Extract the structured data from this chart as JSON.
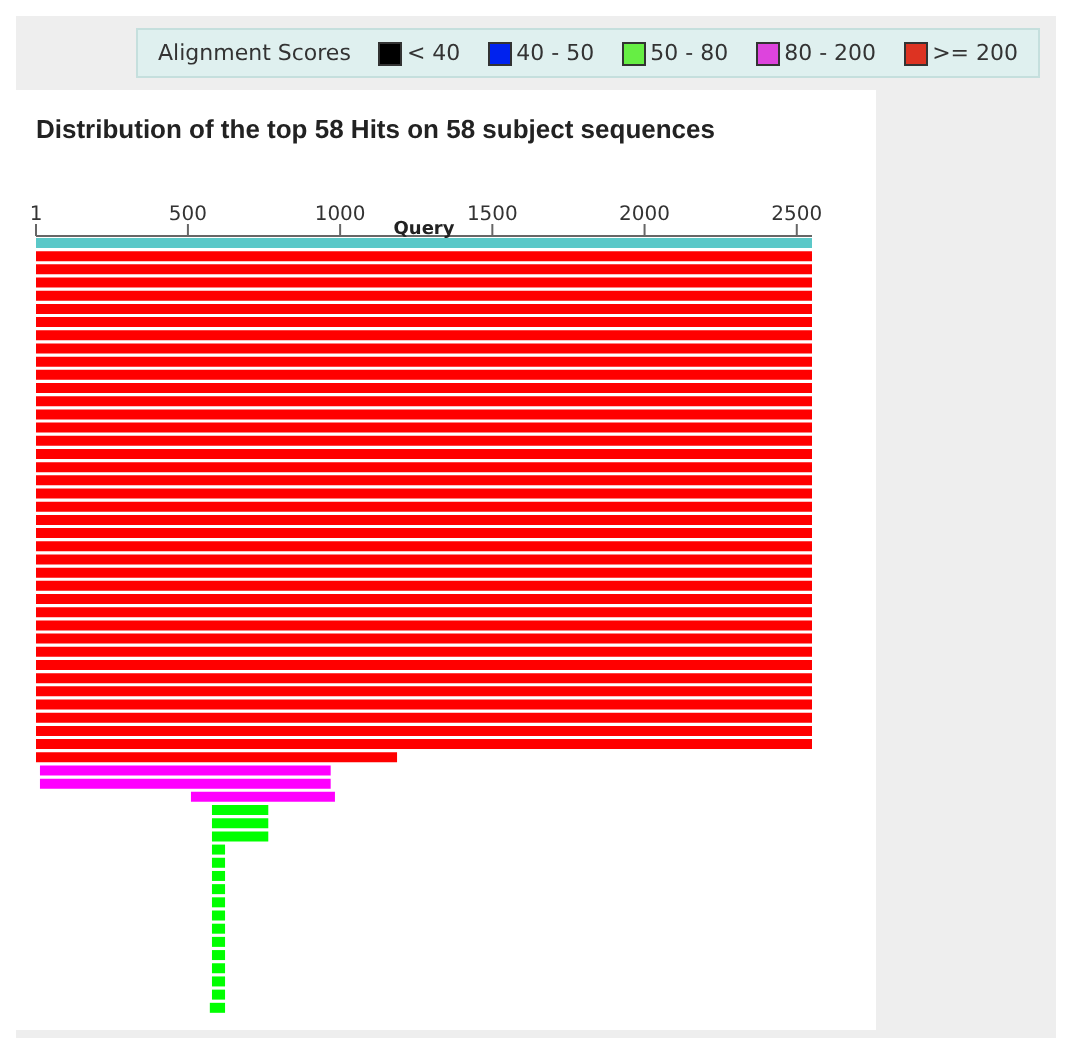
{
  "chart_data": {
    "type": "bar",
    "orientation": "horizontal",
    "title": "Distribution of the top 58 Hits on 58 subject sequences",
    "legend_title": "Alignment Scores",
    "annotations": [
      "Query",
      "< 40",
      "40 - 50",
      "50 - 80",
      "80 - 200",
      ">= 200"
    ],
    "xlim": [
      1,
      2550
    ],
    "xticks": [
      1,
      500,
      1000,
      1500,
      2000,
      2500
    ],
    "categories": [
      null,
      null,
      null,
      null,
      null,
      null,
      null,
      null,
      null,
      null,
      null,
      null,
      null,
      null,
      null,
      null,
      null,
      null,
      null,
      null,
      null,
      null,
      null,
      null,
      null,
      null,
      null,
      null,
      null,
      null,
      null,
      null,
      null,
      null,
      null,
      null,
      null,
      null,
      null,
      null,
      null,
      null,
      null,
      null,
      null,
      null,
      null,
      null,
      null,
      null,
      null,
      null,
      null,
      null,
      null,
      null,
      null,
      null,
      null
    ],
    "base": [
      1,
      1,
      1,
      1,
      1,
      1,
      1,
      1,
      1,
      1,
      1,
      1,
      1,
      1,
      1,
      1,
      1,
      1,
      1,
      1,
      1,
      1,
      1,
      1,
      1,
      1,
      1,
      1,
      1,
      1,
      1,
      1,
      1,
      1,
      1,
      1,
      1,
      1,
      1,
      1,
      14,
      14,
      510,
      579,
      579,
      579,
      579,
      579,
      579,
      579,
      579,
      579,
      579,
      579,
      579,
      579,
      579,
      579,
      572
    ],
    "values": [
      2549,
      2549,
      2549,
      2549,
      2549,
      2549,
      2549,
      2549,
      2549,
      2549,
      2549,
      2549,
      2549,
      2549,
      2549,
      2549,
      2549,
      2549,
      2549,
      2549,
      2549,
      2549,
      2549,
      2549,
      2549,
      2549,
      2549,
      2549,
      2549,
      2549,
      2549,
      2549,
      2549,
      2549,
      2549,
      2549,
      2549,
      2549,
      2549,
      1186,
      955,
      955,
      473,
      185,
      185,
      185,
      43,
      43,
      43,
      43,
      43,
      43,
      43,
      43,
      43,
      43,
      43,
      43,
      50
    ],
    "colors": [
      "#5bc8c8",
      "#ff0000",
      "#ff0000",
      "#ff0000",
      "#ff0000",
      "#ff0000",
      "#ff0000",
      "#ff0000",
      "#ff0000",
      "#ff0000",
      "#ff0000",
      "#ff0000",
      "#ff0000",
      "#ff0000",
      "#ff0000",
      "#ff0000",
      "#ff0000",
      "#ff0000",
      "#ff0000",
      "#ff0000",
      "#ff0000",
      "#ff0000",
      "#ff0000",
      "#ff0000",
      "#ff0000",
      "#ff0000",
      "#ff0000",
      "#ff0000",
      "#ff0000",
      "#ff0000",
      "#ff0000",
      "#ff0000",
      "#ff0000",
      "#ff0000",
      "#ff0000",
      "#ff0000",
      "#ff0000",
      "#ff0000",
      "#ff0000",
      "#ff0000",
      "#ff00ff",
      "#ff00ff",
      "#ff00ff",
      "#00ff00",
      "#00ff00",
      "#00ff00",
      "#00ff00",
      "#00ff00",
      "#00ff00",
      "#00ff00",
      "#00ff00",
      "#00ff00",
      "#00ff00",
      "#00ff00",
      "#00ff00",
      "#00ff00",
      "#00ff00",
      "#00ff00",
      "#00ff00"
    ]
  }
}
